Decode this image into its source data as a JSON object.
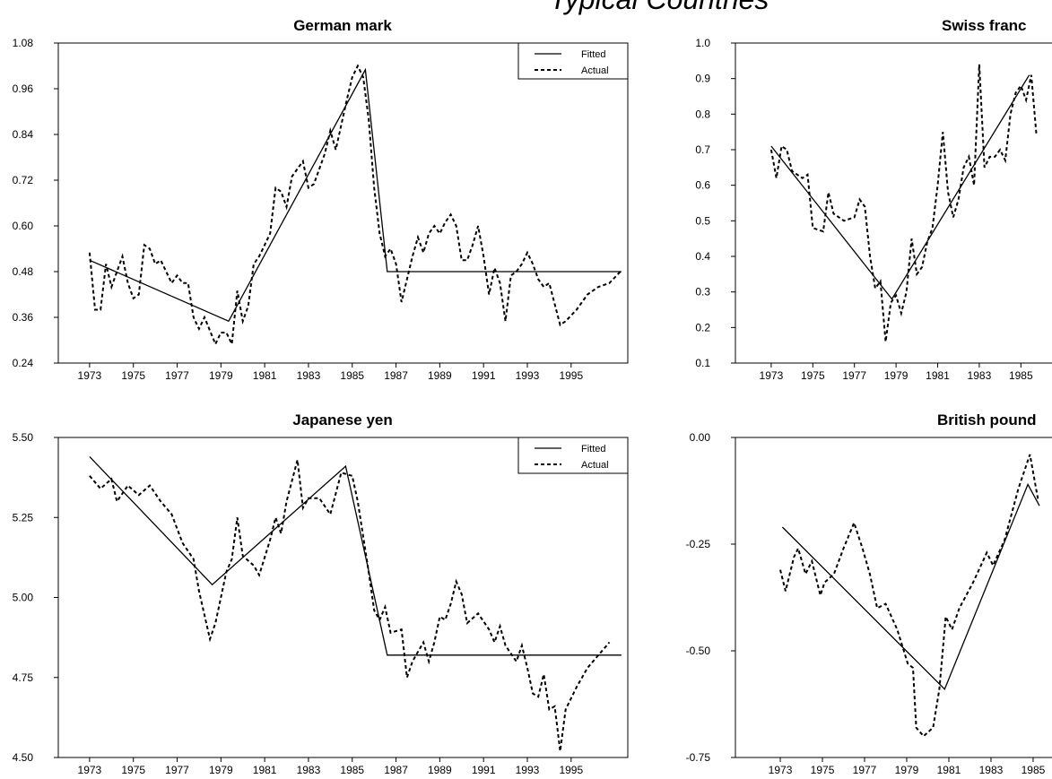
{
  "title": "Typical Countries",
  "chart_data": [
    {
      "type": "line",
      "title": "German mark",
      "legend": "upper right",
      "xlim": [
        1971.57,
        1997.59
      ],
      "xticks": [
        1973,
        1975,
        1977,
        1979,
        1981,
        1983,
        1985,
        1987,
        1989,
        1991,
        1993,
        1995
      ],
      "ylim": [
        0.24,
        1.08
      ],
      "yticks": [
        0.24,
        0.36,
        0.48,
        {
          "value": 0.6,
          "label": "0.60"
        },
        0.72,
        0.84,
        0.96,
        1.08
      ],
      "series": [
        {
          "name": "Fitted",
          "color": "#000000",
          "linestyle": "solid",
          "x": [
            1973,
            1979.35,
            1985.6,
            1986.6,
            1997.3
          ],
          "values": [
            0.51,
            0.35,
            1.01,
            0.48,
            0.48
          ]
        },
        {
          "name": "Actual",
          "color": "#000000",
          "linestyle": "dotted",
          "x": [
            1973.0,
            1973.25,
            1973.5,
            1973.75,
            1974.0,
            1974.5,
            1974.75,
            1975.0,
            1975.25,
            1975.5,
            1975.75,
            1976.0,
            1976.25,
            1976.5,
            1976.75,
            1977.0,
            1977.25,
            1977.5,
            1977.75,
            1978.0,
            1978.25,
            1978.75,
            1979.0,
            1979.25,
            1979.5,
            1979.75,
            1980.0,
            1980.25,
            1980.5,
            1980.75,
            1981.25,
            1981.5,
            1981.75,
            1982.0,
            1982.25,
            1982.75,
            1983.0,
            1983.25,
            1983.75,
            1984.0,
            1984.25,
            1984.75,
            1985.0,
            1985.25,
            1985.5,
            1985.75,
            1986.0,
            1986.25,
            1986.5,
            1986.75,
            1987.0,
            1987.25,
            1987.5,
            1987.75,
            1988.0,
            1988.25,
            1988.5,
            1988.75,
            1989.0,
            1989.25,
            1989.5,
            1989.75,
            1990.0,
            1990.25,
            1990.5,
            1990.75,
            1991.0,
            1991.25,
            1991.5,
            1991.75,
            1992.0,
            1992.25,
            1992.5,
            1992.75,
            1993.0,
            1993.25,
            1993.5,
            1993.75,
            1994.0,
            1994.5,
            1994.75,
            1995.25,
            1995.75,
            1996.25,
            1996.75,
            1997.25
          ],
          "values": [
            0.53,
            0.38,
            0.38,
            0.5,
            0.44,
            0.52,
            0.45,
            0.41,
            0.42,
            0.55,
            0.54,
            0.5,
            0.51,
            0.48,
            0.45,
            0.47,
            0.45,
            0.45,
            0.36,
            0.33,
            0.36,
            0.29,
            0.32,
            0.32,
            0.29,
            0.43,
            0.35,
            0.39,
            0.5,
            0.52,
            0.58,
            0.7,
            0.69,
            0.65,
            0.73,
            0.77,
            0.7,
            0.71,
            0.79,
            0.85,
            0.8,
            0.93,
            0.99,
            1.02,
            0.99,
            0.88,
            0.7,
            0.58,
            0.52,
            0.54,
            0.5,
            0.4,
            0.46,
            0.52,
            0.57,
            0.53,
            0.58,
            0.6,
            0.58,
            0.61,
            0.63,
            0.6,
            0.51,
            0.51,
            0.55,
            0.6,
            0.52,
            0.42,
            0.49,
            0.45,
            0.35,
            0.47,
            0.48,
            0.5,
            0.53,
            0.5,
            0.46,
            0.44,
            0.45,
            0.34,
            0.35,
            0.38,
            0.42,
            0.44,
            0.45,
            0.48
          ]
        }
      ]
    },
    {
      "type": "line",
      "title": "Swiss franc",
      "xlim": [
        1971.28,
        1998.65
      ],
      "xticks": [
        1973,
        1975,
        1977,
        1979,
        1981,
        1983,
        1985
      ],
      "ylim": [
        0.1,
        1.0
      ],
      "yticks": [
        0.1,
        0.2,
        0.3,
        0.4,
        0.5,
        0.6,
        0.7,
        0.8,
        0.9,
        {
          "value": 1.0,
          "label": "1.0"
        }
      ],
      "series": [
        {
          "color": "#000000",
          "linestyle": "solid",
          "x": [
            1973,
            1978.8,
            1985.4
          ],
          "values": [
            0.71,
            0.28,
            0.91
          ]
        },
        {
          "color": "#000000",
          "linestyle": "dotted",
          "x": [
            1973.0,
            1973.25,
            1973.5,
            1973.75,
            1974.0,
            1974.5,
            1974.75,
            1975.0,
            1975.5,
            1975.75,
            1976.0,
            1976.5,
            1977.0,
            1977.25,
            1977.5,
            1977.75,
            1978.0,
            1978.25,
            1978.5,
            1978.75,
            1979.0,
            1979.25,
            1979.5,
            1979.75,
            1980.0,
            1980.25,
            1980.5,
            1980.75,
            1981.0,
            1981.25,
            1981.5,
            1981.75,
            1982.0,
            1982.25,
            1982.5,
            1982.75,
            1983.0,
            1983.25,
            1983.5,
            1983.75,
            1984.0,
            1984.25,
            1984.5,
            1984.75,
            1985.0,
            1985.25,
            1985.5,
            1985.75
          ],
          "values": [
            0.7,
            0.62,
            0.71,
            0.7,
            0.64,
            0.62,
            0.63,
            0.48,
            0.47,
            0.58,
            0.52,
            0.5,
            0.51,
            0.56,
            0.54,
            0.4,
            0.31,
            0.33,
            0.16,
            0.27,
            0.29,
            0.24,
            0.3,
            0.45,
            0.35,
            0.37,
            0.44,
            0.48,
            0.6,
            0.75,
            0.58,
            0.51,
            0.56,
            0.65,
            0.68,
            0.6,
            0.94,
            0.65,
            0.68,
            0.68,
            0.7,
            0.67,
            0.8,
            0.86,
            0.88,
            0.84,
            0.91,
            0.74
          ]
        }
      ]
    },
    {
      "type": "line",
      "title": "Japanese yen",
      "legend": "upper right",
      "xlim": [
        1971.57,
        1997.59
      ],
      "xticks": [
        1973,
        1975,
        1977,
        1979,
        1981,
        1983,
        1985,
        1987,
        1989,
        1991,
        1993,
        1995
      ],
      "ylim": [
        4.5,
        5.5
      ],
      "yticks": [
        {
          "value": 4.5,
          "label": "4.50"
        },
        4.75,
        {
          "value": 5.0,
          "label": "5.00"
        },
        5.25,
        {
          "value": 5.5,
          "label": "5.50"
        }
      ],
      "series": [
        {
          "name": "Fitted",
          "color": "#000000",
          "linestyle": "solid",
          "x": [
            1973,
            1978.6,
            1984.7,
            1986.6,
            1997.3
          ],
          "values": [
            5.44,
            5.04,
            5.41,
            4.82,
            4.82
          ]
        },
        {
          "name": "Actual",
          "color": "#000000",
          "linestyle": "dotted",
          "x": [
            1973.0,
            1973.5,
            1974.0,
            1974.25,
            1974.75,
            1975.25,
            1975.75,
            1976.25,
            1976.75,
            1977.25,
            1977.75,
            1978.0,
            1978.5,
            1978.75,
            1979.25,
            1979.5,
            1979.75,
            1980.0,
            1980.5,
            1980.75,
            1981.25,
            1981.5,
            1981.75,
            1982.0,
            1982.5,
            1982.75,
            1983.0,
            1983.5,
            1984.0,
            1984.5,
            1985.0,
            1985.25,
            1985.75,
            1986.0,
            1986.25,
            1986.5,
            1986.75,
            1987.25,
            1987.5,
            1987.75,
            1988.25,
            1988.5,
            1988.75,
            1989.0,
            1989.25,
            1989.5,
            1989.75,
            1990.0,
            1990.25,
            1990.75,
            1991.25,
            1991.5,
            1991.75,
            1992.0,
            1992.5,
            1992.75,
            1993.0,
            1993.25,
            1993.5,
            1993.75,
            1994.0,
            1994.25,
            1994.5,
            1994.75,
            1995.25,
            1995.75,
            1996.25,
            1996.75
          ],
          "values": [
            5.38,
            5.34,
            5.37,
            5.3,
            5.35,
            5.32,
            5.35,
            5.3,
            5.26,
            5.17,
            5.12,
            5.02,
            4.87,
            4.92,
            5.08,
            5.12,
            5.25,
            5.13,
            5.1,
            5.07,
            5.18,
            5.25,
            5.2,
            5.3,
            5.43,
            5.28,
            5.31,
            5.31,
            5.26,
            5.39,
            5.38,
            5.3,
            5.08,
            4.96,
            4.93,
            4.97,
            4.89,
            4.9,
            4.75,
            4.8,
            4.86,
            4.8,
            4.86,
            4.94,
            4.93,
            4.98,
            5.05,
            5.01,
            4.92,
            4.95,
            4.9,
            4.86,
            4.91,
            4.85,
            4.8,
            4.85,
            4.78,
            4.7,
            4.69,
            4.76,
            4.65,
            4.66,
            4.52,
            4.65,
            4.72,
            4.78,
            4.82,
            4.86
          ]
        }
      ]
    },
    {
      "type": "line",
      "title": "British pound",
      "xlim": [
        1970.87,
        1997.9
      ],
      "xticks": [
        1973,
        1975,
        1977,
        1979,
        1981,
        1983,
        1985
      ],
      "ylim": [
        -0.75,
        0.0
      ],
      "yticks": [
        -0.75,
        {
          "value": -0.5,
          "label": "-0.50"
        },
        -0.25,
        {
          "value": 0.0,
          "label": "0.00"
        }
      ],
      "series": [
        {
          "color": "#000000",
          "linestyle": "solid",
          "x": [
            1973.1,
            1980.8,
            1984.75,
            1985.3
          ],
          "values": [
            -0.21,
            -0.59,
            -0.11,
            -0.16
          ]
        },
        {
          "color": "#000000",
          "linestyle": "dotted",
          "x": [
            1973.0,
            1973.25,
            1973.65,
            1973.85,
            1974.2,
            1974.5,
            1974.9,
            1975.1,
            1975.55,
            1976.0,
            1976.5,
            1976.9,
            1977.25,
            1977.6,
            1978.0,
            1978.55,
            1979.05,
            1979.3,
            1979.45,
            1979.8,
            1980.25,
            1980.55,
            1980.85,
            1981.15,
            1981.5,
            1982.15,
            1982.8,
            1983.1,
            1983.65,
            1984.3,
            1984.85,
            1985.25
          ],
          "values": [
            -0.31,
            -0.36,
            -0.28,
            -0.26,
            -0.32,
            -0.29,
            -0.37,
            -0.34,
            -0.32,
            -0.26,
            -0.2,
            -0.26,
            -0.32,
            -0.4,
            -0.39,
            -0.45,
            -0.53,
            -0.54,
            -0.68,
            -0.7,
            -0.68,
            -0.59,
            -0.42,
            -0.45,
            -0.4,
            -0.34,
            -0.27,
            -0.3,
            -0.24,
            -0.12,
            -0.04,
            -0.15
          ]
        }
      ]
    }
  ]
}
